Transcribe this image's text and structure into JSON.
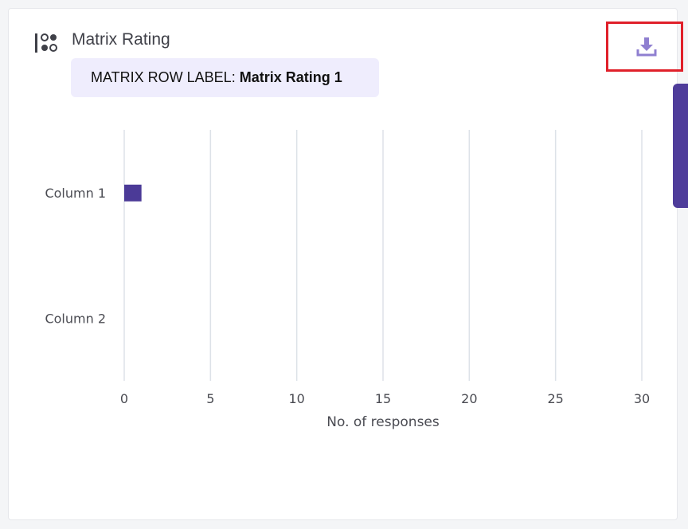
{
  "question": {
    "title": "Matrix Rating",
    "icon": "matrix-question-icon"
  },
  "row_label": {
    "prefix": "MATRIX ROW LABEL:",
    "value": "Matrix Rating 1"
  },
  "toolbar": {
    "download_icon": "download-icon"
  },
  "colors": {
    "bar": "#4b3a97",
    "accent": "#8f7fd0",
    "pill_bg": "#efedfd",
    "highlight": "#e0202a",
    "side_tab": "#4e3c9a",
    "gridline": "#dde2e8"
  },
  "chart_data": {
    "type": "bar",
    "orientation": "horizontal",
    "categories": [
      "Column 1",
      "Column 2"
    ],
    "values": [
      1,
      0
    ],
    "xlabel": "No. of responses",
    "xlim": [
      0,
      30
    ],
    "xticks": [
      0,
      5,
      10,
      15,
      20,
      25,
      30
    ],
    "grid": true
  }
}
